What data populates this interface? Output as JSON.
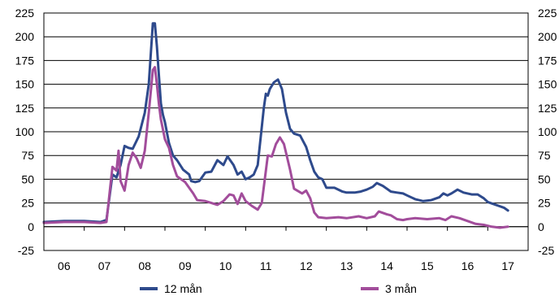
{
  "chart_data": {
    "type": "line",
    "x_ticks": [
      "06",
      "07",
      "08",
      "09",
      "10",
      "11",
      "12",
      "13",
      "14",
      "15",
      "16",
      "17"
    ],
    "y_ticks": [
      -25,
      0,
      25,
      50,
      75,
      100,
      125,
      150,
      175,
      200,
      225
    ],
    "ylim": [
      -25,
      225
    ],
    "xlim": [
      2006.0,
      2018.0
    ],
    "grid": true,
    "secondary_y_axis_mirrors_left": true,
    "legend_position": "bottom",
    "series": [
      {
        "name": "12 mån",
        "color": "#2e4a8c",
        "x": [
          2006.0,
          2006.5,
          2007.0,
          2007.4,
          2007.55,
          2007.7,
          2007.8,
          2007.9,
          2008.0,
          2008.1,
          2008.2,
          2008.35,
          2008.5,
          2008.6,
          2008.7,
          2008.75,
          2008.8,
          2008.85,
          2008.9,
          2008.95,
          2009.0,
          2009.1,
          2009.2,
          2009.3,
          2009.45,
          2009.6,
          2009.65,
          2009.75,
          2009.85,
          2010.0,
          2010.15,
          2010.3,
          2010.45,
          2010.55,
          2010.7,
          2010.8,
          2010.9,
          2011.0,
          2011.1,
          2011.2,
          2011.3,
          2011.45,
          2011.5,
          2011.55,
          2011.6,
          2011.7,
          2011.8,
          2011.9,
          2012.0,
          2012.1,
          2012.2,
          2012.35,
          2012.5,
          2012.6,
          2012.7,
          2012.8,
          2012.9,
          2013.0,
          2013.2,
          2013.4,
          2013.5,
          2013.7,
          2013.85,
          2014.0,
          2014.15,
          2014.25,
          2014.4,
          2014.5,
          2014.6,
          2014.75,
          2014.9,
          2015.0,
          2015.2,
          2015.4,
          2015.6,
          2015.8,
          2015.9,
          2016.0,
          2016.1,
          2016.25,
          2016.4,
          2016.6,
          2016.75,
          2016.9,
          2017.0,
          2017.2,
          2017.4,
          2017.5
        ],
        "y": [
          5,
          6,
          6,
          5,
          7,
          55,
          52,
          65,
          85,
          83,
          82,
          95,
          120,
          150,
          214,
          214,
          190,
          160,
          130,
          118,
          110,
          88,
          75,
          70,
          60,
          55,
          48,
          47,
          48,
          57,
          58,
          70,
          65,
          74,
          65,
          55,
          58,
          50,
          52,
          55,
          65,
          125,
          140,
          138,
          145,
          152,
          155,
          145,
          120,
          103,
          98,
          96,
          84,
          70,
          58,
          52,
          50,
          41,
          41,
          37,
          36,
          36,
          37,
          39,
          42,
          46,
          43,
          40,
          37,
          36,
          35,
          33,
          29,
          27,
          28,
          31,
          35,
          33,
          35,
          39,
          36,
          34,
          34,
          30,
          26,
          23,
          20,
          17
        ]
      },
      {
        "name": "3 mån",
        "color": "#a24d9b",
        "x": [
          2006.0,
          2006.5,
          2007.0,
          2007.4,
          2007.55,
          2007.7,
          2007.8,
          2007.85,
          2007.9,
          2008.0,
          2008.1,
          2008.2,
          2008.3,
          2008.4,
          2008.5,
          2008.6,
          2008.7,
          2008.75,
          2008.8,
          2008.85,
          2008.9,
          2009.0,
          2009.1,
          2009.2,
          2009.3,
          2009.5,
          2009.7,
          2009.8,
          2010.0,
          2010.15,
          2010.3,
          2010.45,
          2010.6,
          2010.7,
          2010.8,
          2010.9,
          2011.0,
          2011.15,
          2011.3,
          2011.4,
          2011.55,
          2011.65,
          2011.75,
          2011.85,
          2011.95,
          2012.1,
          2012.2,
          2012.4,
          2012.5,
          2012.6,
          2012.7,
          2012.8,
          2013.0,
          2013.3,
          2013.5,
          2013.8,
          2014.0,
          2014.2,
          2014.3,
          2014.5,
          2014.6,
          2014.75,
          2014.9,
          2015.0,
          2015.2,
          2015.5,
          2015.8,
          2015.95,
          2016.1,
          2016.3,
          2016.5,
          2016.7,
          2016.9,
          2017.1,
          2017.3,
          2017.5
        ],
        "y": [
          4,
          5,
          5,
          4,
          5,
          63,
          59,
          80,
          48,
          38,
          65,
          78,
          72,
          62,
          80,
          120,
          165,
          168,
          150,
          130,
          113,
          92,
          83,
          65,
          53,
          47,
          35,
          28,
          27,
          25,
          23,
          27,
          34,
          33,
          24,
          35,
          27,
          22,
          18,
          25,
          75,
          74,
          87,
          94,
          87,
          60,
          40,
          35,
          38,
          30,
          15,
          10,
          9,
          10,
          9,
          11,
          9,
          11,
          16,
          13,
          12,
          8,
          7,
          8,
          9,
          8,
          9,
          7,
          11,
          9,
          6,
          3,
          2,
          0,
          -1,
          0
        ]
      }
    ]
  }
}
